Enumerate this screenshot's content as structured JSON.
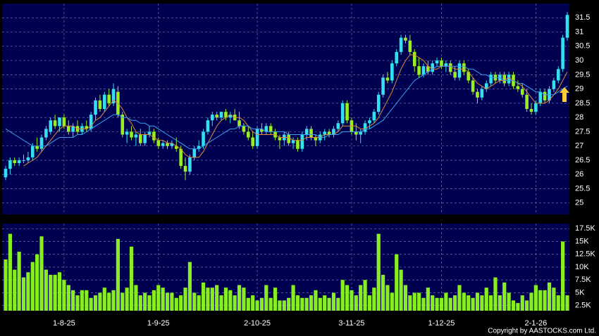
{
  "chart_data": {
    "type": "candlestick",
    "categories": [
      null,
      null,
      null,
      null,
      null,
      null,
      null,
      null,
      null,
      null,
      null,
      null,
      null,
      "1-8-25",
      null,
      null,
      null,
      null,
      null,
      null,
      null,
      null,
      null,
      null,
      null,
      null,
      null,
      null,
      null,
      null,
      null,
      null,
      null,
      null,
      "1-9-25",
      null,
      null,
      null,
      null,
      null,
      null,
      null,
      null,
      null,
      null,
      null,
      null,
      null,
      null,
      null,
      null,
      null,
      null,
      null,
      null,
      null,
      "2-10-25",
      null,
      null,
      null,
      null,
      null,
      null,
      null,
      null,
      null,
      null,
      null,
      null,
      null,
      null,
      null,
      null,
      null,
      null,
      null,
      null,
      "3-11-25",
      null,
      null,
      null,
      null,
      null,
      null,
      null,
      null,
      null,
      null,
      null,
      null,
      null,
      null,
      null,
      null,
      null,
      null,
      null,
      "1-12-25",
      null,
      null,
      null,
      null,
      null,
      null,
      null,
      null,
      null,
      null,
      null,
      null,
      null,
      null,
      null,
      null,
      null,
      null,
      null,
      null,
      "2-1-26",
      null,
      null,
      null,
      null,
      null,
      null,
      null
    ],
    "ohlc": [
      [
        25.9,
        26.3,
        25.8,
        26.2
      ],
      [
        26.2,
        26.6,
        26.0,
        26.5
      ],
      [
        26.5,
        26.6,
        26.3,
        26.4
      ],
      [
        26.4,
        26.6,
        26.3,
        26.5
      ],
      [
        26.5,
        26.7,
        26.4,
        26.5
      ],
      [
        26.5,
        26.8,
        26.4,
        26.6
      ],
      [
        26.6,
        27.1,
        26.5,
        27.0
      ],
      [
        27.0,
        27.3,
        26.8,
        26.9
      ],
      [
        26.9,
        27.4,
        26.8,
        27.3
      ],
      [
        27.3,
        27.7,
        27.2,
        27.6
      ],
      [
        27.5,
        28.0,
        27.4,
        27.9
      ],
      [
        27.9,
        28.1,
        27.6,
        27.7
      ],
      [
        27.7,
        28.0,
        27.5,
        28.0
      ],
      [
        28.0,
        28.1,
        27.6,
        27.7
      ],
      [
        27.7,
        27.9,
        27.4,
        27.5
      ],
      [
        27.5,
        27.8,
        27.3,
        27.7
      ],
      [
        27.7,
        27.9,
        27.4,
        27.5
      ],
      [
        27.5,
        27.8,
        27.4,
        27.7
      ],
      [
        27.7,
        27.9,
        27.5,
        27.6
      ],
      [
        27.6,
        28.2,
        27.5,
        28.1
      ],
      [
        28.1,
        28.7,
        27.9,
        28.6
      ],
      [
        28.6,
        28.8,
        28.2,
        28.3
      ],
      [
        28.3,
        28.9,
        28.2,
        28.8
      ],
      [
        28.8,
        29.0,
        28.4,
        28.5
      ],
      [
        28.5,
        29.2,
        28.4,
        29.0
      ],
      [
        28.9,
        29.1,
        28.0,
        28.1
      ],
      [
        28.1,
        28.2,
        27.3,
        27.4
      ],
      [
        27.4,
        27.6,
        27.1,
        27.5
      ],
      [
        27.5,
        27.7,
        27.2,
        27.3
      ],
      [
        27.3,
        27.5,
        27.0,
        27.4
      ],
      [
        27.4,
        27.6,
        27.0,
        27.1
      ],
      [
        27.1,
        27.5,
        27.0,
        27.4
      ],
      [
        27.4,
        27.7,
        27.3,
        27.5
      ],
      [
        27.5,
        27.6,
        27.1,
        27.2
      ],
      [
        27.2,
        27.3,
        26.9,
        27.0
      ],
      [
        27.0,
        27.2,
        26.9,
        27.1
      ],
      [
        27.1,
        27.2,
        26.9,
        27.0
      ],
      [
        27.0,
        27.2,
        26.9,
        27.1
      ],
      [
        27.0,
        27.3,
        26.8,
        26.9
      ],
      [
        26.9,
        27.0,
        26.2,
        26.3
      ],
      [
        26.3,
        26.6,
        25.8,
        26.1
      ],
      [
        26.1,
        26.7,
        26.0,
        26.6
      ],
      [
        26.6,
        27.0,
        26.5,
        26.9
      ],
      [
        26.9,
        27.2,
        26.8,
        27.0
      ],
      [
        27.0,
        27.6,
        26.9,
        27.5
      ],
      [
        27.5,
        28.0,
        27.4,
        27.9
      ],
      [
        27.9,
        28.2,
        27.7,
        28.1
      ],
      [
        28.1,
        28.2,
        27.9,
        28.0
      ],
      [
        28.0,
        28.2,
        27.9,
        28.2
      ],
      [
        28.2,
        28.3,
        27.9,
        28.0
      ],
      [
        28.0,
        28.2,
        27.8,
        28.1
      ],
      [
        28.1,
        28.3,
        27.9,
        27.9
      ],
      [
        27.9,
        28.2,
        27.6,
        27.7
      ],
      [
        27.7,
        27.8,
        27.4,
        27.5
      ],
      [
        27.5,
        27.7,
        27.2,
        27.3
      ],
      [
        27.3,
        27.5,
        26.9,
        27.0
      ],
      [
        27.0,
        27.7,
        26.9,
        27.6
      ],
      [
        27.6,
        27.8,
        27.4,
        27.5
      ],
      [
        27.5,
        27.8,
        27.4,
        27.7
      ],
      [
        27.7,
        27.8,
        27.4,
        27.5
      ],
      [
        27.5,
        27.6,
        27.2,
        27.3
      ],
      [
        27.3,
        27.4,
        26.9,
        27.2
      ],
      [
        27.2,
        27.5,
        27.0,
        27.4
      ],
      [
        27.4,
        27.5,
        27.0,
        27.1
      ],
      [
        27.1,
        27.3,
        26.9,
        27.2
      ],
      [
        27.2,
        27.3,
        26.8,
        26.9
      ],
      [
        26.9,
        27.5,
        26.8,
        27.4
      ],
      [
        27.4,
        27.7,
        27.2,
        27.6
      ],
      [
        27.6,
        27.7,
        27.2,
        27.3
      ],
      [
        27.3,
        27.4,
        27.0,
        27.2
      ],
      [
        27.2,
        27.5,
        27.1,
        27.4
      ],
      [
        27.4,
        27.6,
        27.2,
        27.5
      ],
      [
        27.5,
        27.6,
        27.3,
        27.4
      ],
      [
        27.4,
        27.7,
        27.3,
        27.6
      ],
      [
        27.6,
        27.9,
        27.5,
        27.8
      ],
      [
        27.8,
        28.6,
        27.7,
        28.5
      ],
      [
        28.5,
        28.6,
        27.8,
        27.9
      ],
      [
        27.9,
        28.0,
        27.4,
        27.5
      ],
      [
        27.5,
        27.8,
        27.2,
        27.4
      ],
      [
        27.4,
        27.6,
        27.1,
        27.5
      ],
      [
        27.5,
        27.9,
        27.4,
        27.8
      ],
      [
        27.8,
        28.0,
        27.6,
        27.9
      ],
      [
        27.9,
        28.3,
        27.8,
        28.2
      ],
      [
        28.2,
        28.9,
        28.1,
        28.8
      ],
      [
        28.8,
        29.5,
        28.7,
        29.4
      ],
      [
        29.4,
        29.6,
        29.2,
        29.3
      ],
      [
        29.3,
        30.0,
        29.2,
        29.9
      ],
      [
        29.9,
        30.4,
        29.8,
        30.3
      ],
      [
        30.3,
        30.9,
        30.2,
        30.8
      ],
      [
        30.8,
        30.9,
        30.6,
        30.7
      ],
      [
        30.7,
        30.9,
        30.2,
        30.3
      ],
      [
        30.3,
        30.4,
        29.6,
        29.8
      ],
      [
        29.8,
        30.1,
        29.4,
        29.5
      ],
      [
        29.5,
        29.9,
        29.4,
        29.8
      ],
      [
        29.8,
        30.0,
        29.5,
        29.6
      ],
      [
        29.6,
        30.0,
        29.5,
        29.9
      ],
      [
        29.9,
        30.1,
        29.8,
        30.0
      ],
      [
        30.0,
        30.1,
        29.7,
        29.8
      ],
      [
        29.8,
        30.0,
        29.6,
        29.9
      ],
      [
        29.9,
        30.0,
        29.5,
        29.6
      ],
      [
        29.6,
        29.8,
        29.3,
        29.4
      ],
      [
        29.4,
        30.0,
        29.3,
        29.9
      ],
      [
        29.9,
        30.0,
        29.5,
        29.6
      ],
      [
        29.6,
        29.7,
        29.2,
        29.3
      ],
      [
        29.3,
        29.4,
        28.8,
        28.9
      ],
      [
        28.9,
        29.0,
        28.5,
        28.7
      ],
      [
        28.7,
        29.1,
        28.6,
        29.0
      ],
      [
        29.0,
        29.3,
        28.9,
        29.2
      ],
      [
        29.2,
        29.6,
        29.1,
        29.5
      ],
      [
        29.5,
        29.6,
        29.2,
        29.3
      ],
      [
        29.3,
        29.6,
        29.2,
        29.5
      ],
      [
        29.5,
        29.6,
        29.1,
        29.2
      ],
      [
        29.2,
        29.6,
        29.1,
        29.5
      ],
      [
        29.5,
        29.6,
        29.0,
        29.1
      ],
      [
        29.1,
        29.3,
        28.9,
        29.0
      ],
      [
        29.0,
        29.2,
        28.7,
        28.8
      ],
      [
        28.8,
        29.0,
        28.2,
        28.3
      ],
      [
        28.3,
        28.5,
        28.1,
        28.2
      ],
      [
        28.2,
        28.6,
        28.1,
        28.5
      ],
      [
        28.5,
        29.0,
        28.4,
        28.9
      ],
      [
        28.9,
        29.0,
        28.5,
        28.6
      ],
      [
        28.6,
        29.1,
        28.5,
        29.0
      ],
      [
        29.0,
        29.4,
        28.9,
        29.3
      ],
      [
        29.3,
        29.8,
        29.2,
        29.7
      ],
      [
        29.7,
        30.9,
        29.6,
        30.8
      ],
      [
        30.8,
        31.7,
        30.7,
        31.6
      ]
    ],
    "up_color": "#33e0f0",
    "down_color": "#99ee22",
    "ylim": [
      24.6,
      32
    ],
    "yticks": [
      25,
      25.5,
      26,
      26.5,
      27,
      27.5,
      28,
      28.5,
      29,
      29.5,
      30,
      30.5,
      31,
      31.5
    ],
    "grid": true,
    "lines": [
      {
        "color": "#e08a3a",
        "values": [
          null,
          null,
          null,
          null,
          26.3,
          26.4,
          26.5,
          26.6,
          26.8,
          27.0,
          27.2,
          27.4,
          27.6,
          27.7,
          27.7,
          27.7,
          27.6,
          27.6,
          27.6,
          27.7,
          27.9,
          28.0,
          28.2,
          28.4,
          28.6,
          28.5,
          28.3,
          28.0,
          27.8,
          27.5,
          27.4,
          27.4,
          27.4,
          27.3,
          27.2,
          27.2,
          27.1,
          27.1,
          27.0,
          26.9,
          26.7,
          26.6,
          26.6,
          26.6,
          26.8,
          27.1,
          27.4,
          27.7,
          27.9,
          28.0,
          28.1,
          28.0,
          28.0,
          27.9,
          27.7,
          27.5,
          27.4,
          27.4,
          27.4,
          27.4,
          27.4,
          27.3,
          27.3,
          27.3,
          27.2,
          27.2,
          27.2,
          27.3,
          27.3,
          27.3,
          27.3,
          27.4,
          27.4,
          27.4,
          27.5,
          27.7,
          27.7,
          27.7,
          27.7,
          27.6,
          27.6,
          27.7,
          27.8,
          28.0,
          28.3,
          28.6,
          28.9,
          29.3,
          29.7,
          30.0,
          30.2,
          30.2,
          30.1,
          30.0,
          29.8,
          29.7,
          29.7,
          29.8,
          29.8,
          29.8,
          29.7,
          29.7,
          29.7,
          29.6,
          29.4,
          29.2,
          29.1,
          29.0,
          29.1,
          29.2,
          29.3,
          29.3,
          29.4,
          29.3,
          29.2,
          29.1,
          28.9,
          28.7,
          28.5,
          28.5,
          28.5,
          28.6,
          28.8,
          29.0,
          29.3,
          29.6
        ]
      },
      {
        "color": "#3aa0f0",
        "values": [
          27.6,
          27.5,
          27.4,
          27.3,
          27.2,
          27.1,
          27.0,
          27.0,
          27.0,
          27.0,
          27.1,
          27.2,
          27.3,
          27.3,
          27.3,
          27.3,
          27.4,
          27.4,
          27.5,
          27.6,
          27.7,
          27.8,
          27.9,
          28.0,
          28.1,
          28.1,
          28.0,
          28.0,
          27.9,
          27.9,
          27.8,
          27.8,
          27.7,
          27.7,
          27.6,
          27.5,
          27.4,
          27.3,
          27.2,
          27.1,
          27.0,
          26.9,
          26.9,
          26.9,
          27.0,
          27.1,
          27.2,
          27.3,
          27.4,
          27.5,
          27.6,
          27.6,
          27.7,
          27.7,
          27.7,
          27.6,
          27.6,
          27.6,
          27.5,
          27.5,
          27.5,
          27.5,
          27.5,
          27.4,
          27.4,
          27.4,
          27.4,
          27.4,
          27.4,
          27.4,
          27.3,
          27.3,
          27.4,
          27.4,
          27.4,
          27.5,
          27.5,
          27.5,
          27.5,
          27.5,
          27.6,
          27.6,
          27.7,
          27.8,
          27.9,
          28.1,
          28.3,
          28.5,
          28.7,
          28.9,
          29.1,
          29.3,
          29.4,
          29.5,
          29.6,
          29.7,
          29.8,
          29.8,
          29.8,
          29.8,
          29.8,
          29.8,
          29.8,
          29.7,
          29.7,
          29.6,
          29.5,
          29.5,
          29.4,
          29.4,
          29.4,
          29.3,
          29.3,
          29.3,
          29.2,
          29.2,
          29.1,
          29.0,
          28.9,
          28.9,
          28.8,
          28.8,
          28.8,
          28.9,
          29.0,
          29.1
        ]
      }
    ],
    "volume": {
      "type": "bar",
      "color": "#88ee22",
      "values": [
        11500,
        16500,
        9500,
        13000,
        8000,
        9000,
        11000,
        12500,
        16000,
        9500,
        8500,
        8500,
        9000,
        7500,
        6500,
        5500,
        4500,
        5500,
        5500,
        4000,
        4500,
        5000,
        6000,
        5000,
        5500,
        15500,
        5000,
        6000,
        14000,
        6500,
        4500,
        5000,
        4500,
        5500,
        6500,
        6000,
        5000,
        5000,
        4000,
        4500,
        6000,
        11000,
        5000,
        4500,
        7000,
        6000,
        6000,
        6500,
        4500,
        6000,
        5500,
        4500,
        6500,
        6000,
        4000,
        4500,
        3500,
        4000,
        6500,
        4000,
        6000,
        3500,
        3500,
        4000,
        6500,
        4500,
        4000,
        4000,
        4500,
        5500,
        4000,
        4500,
        4000,
        5000,
        4000,
        7500,
        6500,
        5500,
        4500,
        6500,
        7500,
        4500,
        6000,
        16500,
        8500,
        6500,
        5000,
        12500,
        9500,
        6500,
        4500,
        5000,
        5000,
        4000,
        6000,
        4500,
        4000,
        4000,
        5000,
        4000,
        4500,
        6500,
        5000,
        4500,
        4000,
        5000,
        4500,
        6000,
        4500,
        8000,
        4500,
        7000,
        5000,
        3500,
        3000,
        4500,
        3500,
        5000,
        6500,
        5500,
        5500,
        7000,
        6000,
        4500,
        15000,
        4500
      ],
      "ylim": [
        1500,
        18500
      ],
      "yticks": [
        {
          "value": 2500,
          "label": "2.5K"
        },
        {
          "value": 5000,
          "label": "5K"
        },
        {
          "value": 7500,
          "label": "7.5K"
        },
        {
          "value": 10000,
          "label": "10K"
        },
        {
          "value": 12500,
          "label": "12.5K"
        },
        {
          "value": 15000,
          "label": "15K"
        },
        {
          "value": 17500,
          "label": "17.5K"
        }
      ]
    },
    "source": "Copyright by AASTOCKS.com Ltd."
  }
}
